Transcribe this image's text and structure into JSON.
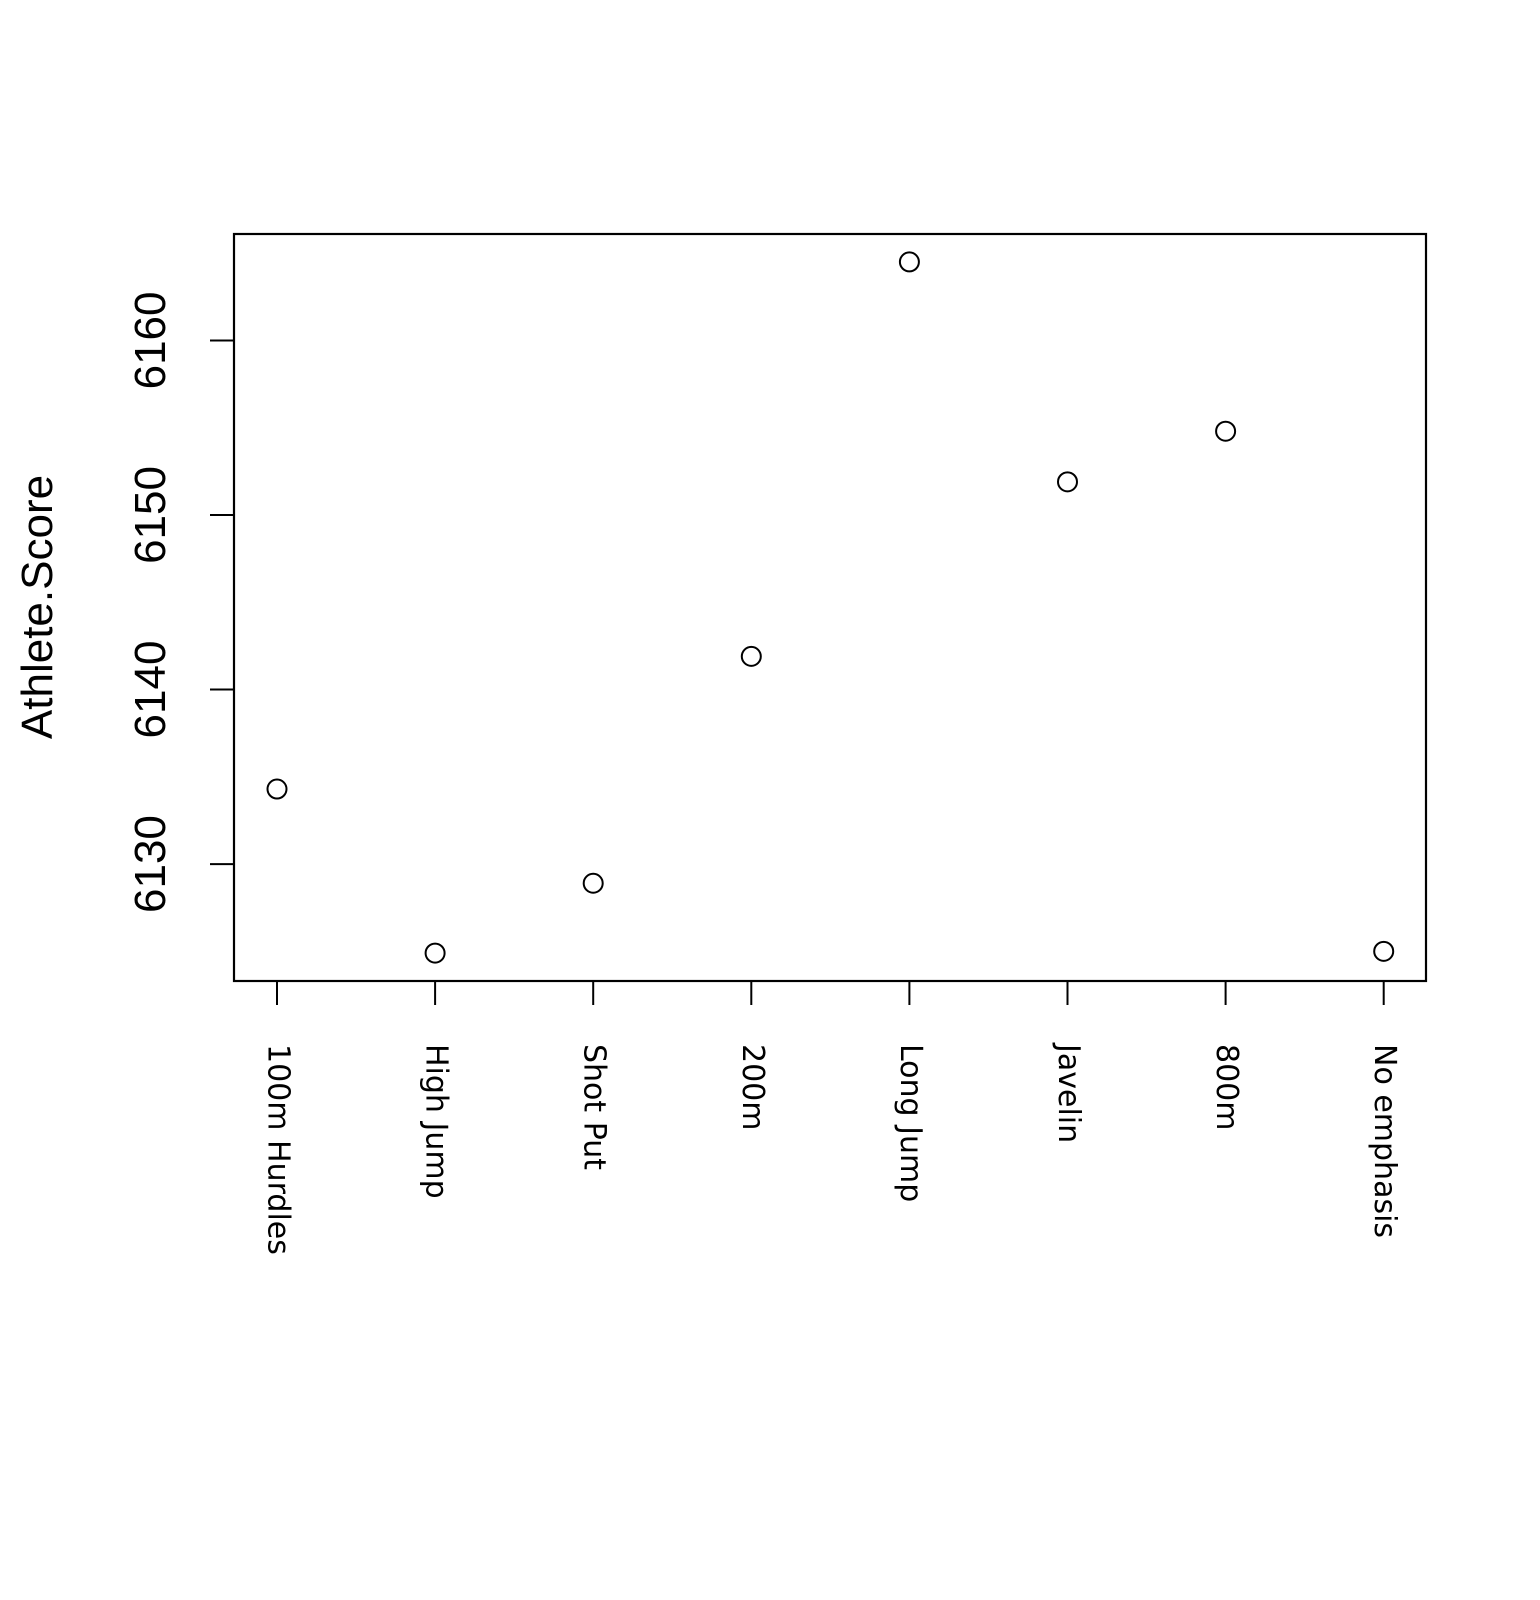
{
  "chart_data": {
    "type": "scatter",
    "title": "",
    "xlabel": "",
    "ylabel": "Athlete.Score",
    "categories": [
      "100m Hurdles",
      "High Jump",
      "Shot Put",
      "200m",
      "Long Jump",
      "Javelin",
      "800m",
      "No emphasis"
    ],
    "values": [
      6134.3,
      6124.9,
      6128.9,
      6141.9,
      6164.5,
      6151.9,
      6154.8,
      6125.0
    ],
    "ylim": [
      6123.3,
      6166.1
    ],
    "yticks": [
      6130,
      6140,
      6150,
      6160
    ],
    "grid": false,
    "legend": "none",
    "marker": "open-circle",
    "colors": {
      "ink": "#000000",
      "background": "#ffffff"
    }
  }
}
